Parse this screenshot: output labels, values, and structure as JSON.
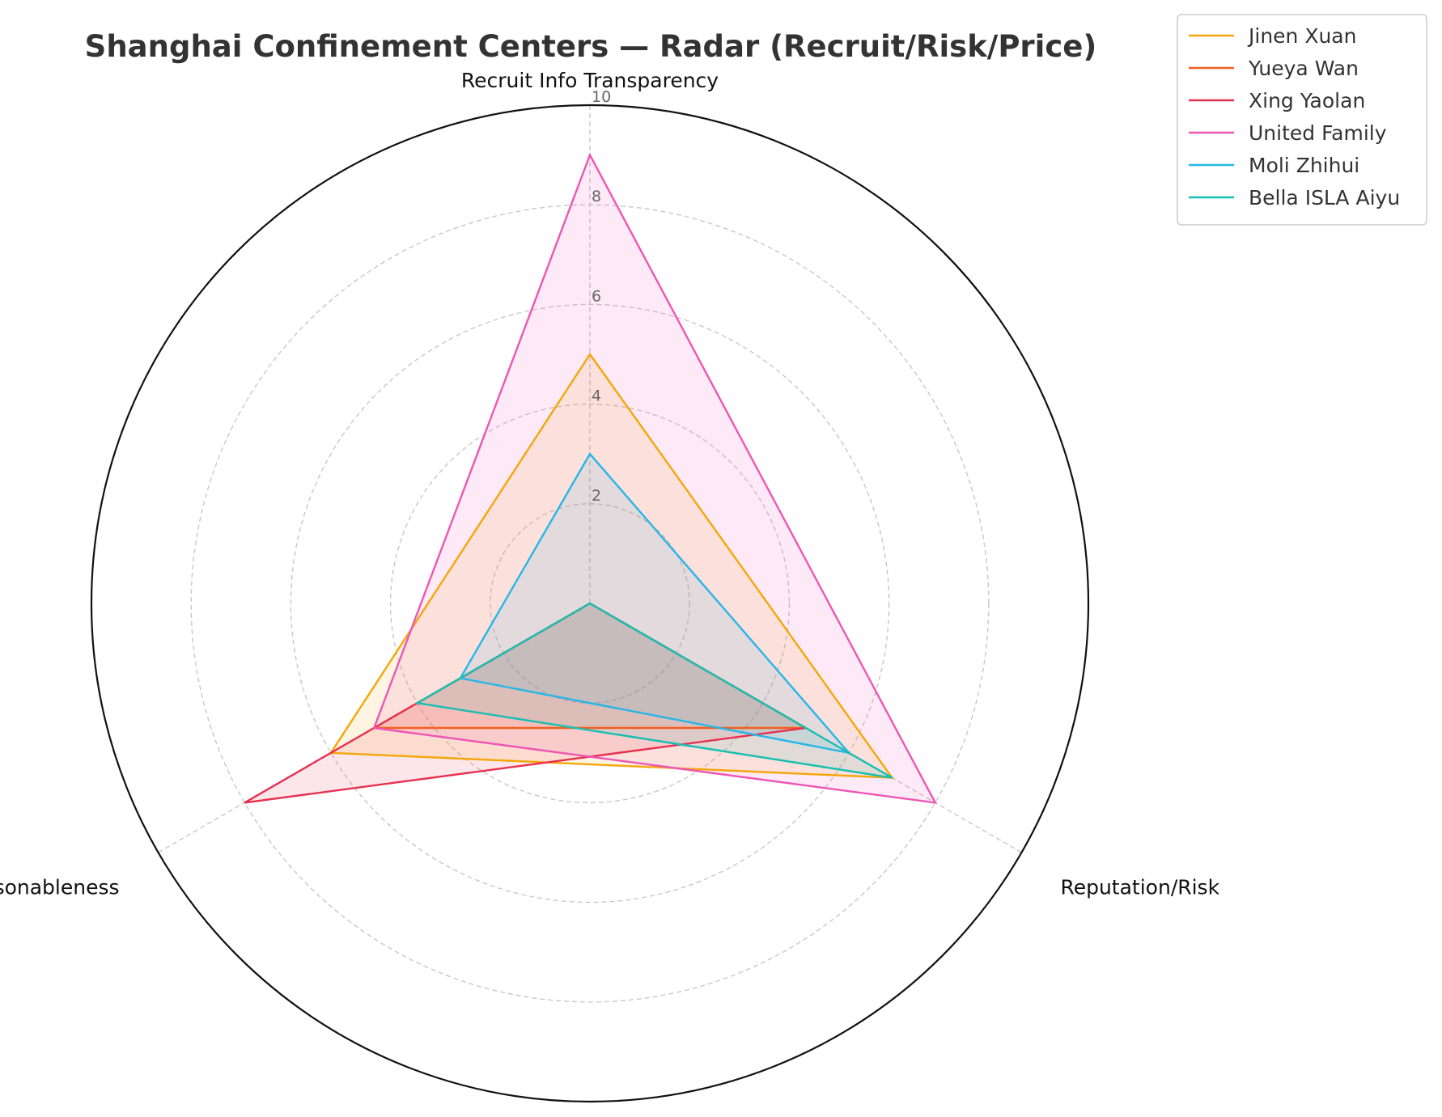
{
  "chart_data": {
    "type": "radar",
    "title": "Shanghai Confinement Centers — Radar (Recruit/Risk/Price)",
    "axes": [
      "Recruit Info Transparency",
      "Reputation/Risk",
      "Price Reasonableness"
    ],
    "rlim": [
      0,
      10
    ],
    "rticks": [
      2,
      4,
      6,
      8,
      10
    ],
    "grid": true,
    "legend_position": "top-right outside",
    "series": [
      {
        "name": "Jinen Xuan",
        "color": "#F5A60A",
        "values": [
          5,
          7,
          6
        ]
      },
      {
        "name": "Yueya Wan",
        "color": "#F25F1D",
        "values": [
          0,
          5,
          5
        ]
      },
      {
        "name": "Xing Yaolan",
        "color": "#E8304F",
        "values": [
          0,
          5,
          8
        ]
      },
      {
        "name": "United Family",
        "color": "#EE55B4",
        "values": [
          9,
          8,
          5
        ]
      },
      {
        "name": "Moli Zhihui",
        "color": "#27B6E8",
        "values": [
          3,
          6,
          3
        ]
      },
      {
        "name": "Bella ISLA Aiyu",
        "color": "#17BFB2",
        "values": [
          0,
          7,
          4
        ]
      }
    ]
  }
}
